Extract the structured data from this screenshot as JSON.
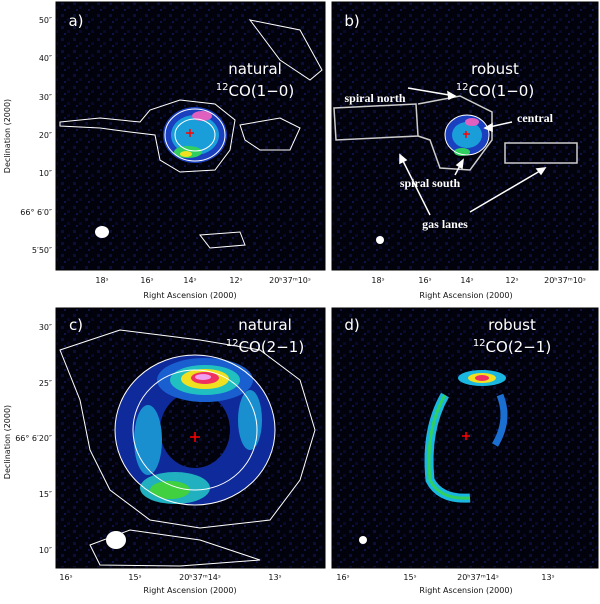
{
  "panels": [
    {
      "label": "a)",
      "weighting": "natural",
      "isotope": "12",
      "line": "CO(1−0)",
      "x_axis_title": "Right Ascension (2000)",
      "x_ticks": [
        "18ˢ",
        "16ˢ",
        "14ˢ",
        "12ˢ",
        "20ʰ37ᵐ10ˢ"
      ],
      "y_axis_title": "Declination (2000)",
      "y_ticks": [
        "50″",
        "40″",
        "30″",
        "20″",
        "10″",
        "66° 6′0″",
        "5′50″"
      ]
    },
    {
      "label": "b)",
      "weighting": "robust",
      "isotope": "12",
      "line": "CO(1−0)",
      "x_axis_title": "Right Ascension (2000)",
      "x_ticks": [
        "18ˢ",
        "16ˢ",
        "14ˢ",
        "12ˢ",
        "20ʰ37ᵐ10ˢ"
      ],
      "annotations": [
        "spiral north",
        "central",
        "spiral south",
        "gas lanes"
      ]
    },
    {
      "label": "c)",
      "weighting": "natural",
      "isotope": "12",
      "line": "CO(2−1)",
      "x_axis_title": "Right Ascension (2000)",
      "x_ticks": [
        "16ˢ",
        "15ˢ",
        "20ʰ37ᵐ14ˢ",
        "13ˢ"
      ],
      "y_axis_title": "Declination (2000)",
      "y_ticks": [
        "30″",
        "25″",
        "66° 6′20″",
        "15″",
        "10″"
      ]
    },
    {
      "label": "d)",
      "weighting": "robust",
      "isotope": "12",
      "line": "CO(2−1)",
      "x_axis_title": "Right Ascension (2000)",
      "x_ticks": [
        "16ˢ",
        "15ˢ",
        "20ʰ37ᵐ14ˢ",
        "13ˢ"
      ]
    }
  ]
}
